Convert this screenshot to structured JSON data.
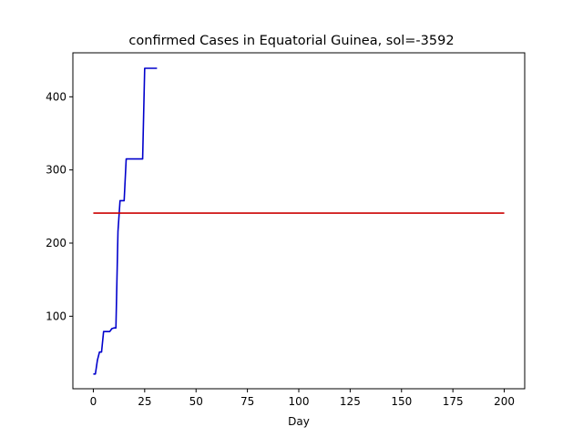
{
  "chart_data": {
    "type": "line",
    "title": "confirmed Cases in Equatorial Guinea, sol=-3592",
    "xlabel": "Day",
    "ylabel": "",
    "xlim": [
      -9.95,
      209.95
    ],
    "ylim": [
      0.85,
      460.15
    ],
    "xticks": [
      0,
      25,
      50,
      75,
      100,
      125,
      150,
      175,
      200
    ],
    "yticks": [
      100,
      200,
      300,
      400
    ],
    "grid": false,
    "legend": "none",
    "series": [
      {
        "color": "#0000cc",
        "x": [
          0,
          1,
          2,
          3,
          4,
          5,
          6,
          7,
          8,
          9,
          10,
          11,
          12,
          13,
          14,
          15,
          16,
          17,
          18,
          19,
          20,
          21,
          22,
          23,
          24,
          25,
          26,
          27,
          28,
          29,
          30,
          31
        ],
        "y": [
          21,
          21,
          40,
          51,
          51,
          79,
          79,
          79,
          79,
          83,
          84,
          84,
          216,
          258,
          258,
          258,
          315,
          315,
          315,
          315,
          315,
          315,
          315,
          315,
          315,
          439,
          439,
          439,
          439,
          439,
          439,
          439
        ]
      },
      {
        "color": "#cc0000",
        "x": [
          0,
          200
        ],
        "y": [
          241,
          241
        ]
      }
    ]
  }
}
